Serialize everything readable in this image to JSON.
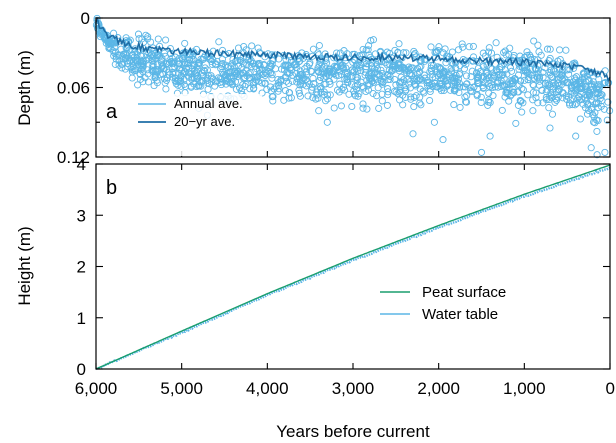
{
  "colors": {
    "annual": "#5bb6e6",
    "twenty_year": "#1f6ea6",
    "peat_surface": "#1a9e6e",
    "water_table": "#5bb6e6"
  },
  "xlabel": "Years before current",
  "chart_data": [
    {
      "type": "scatter",
      "panel": "a",
      "title": "",
      "xlabel": "",
      "ylabel": "Depth (m)",
      "xlim": [
        6000,
        0
      ],
      "ylim": [
        0.12,
        0
      ],
      "y_inverted": true,
      "xticks": [
        6000,
        5000,
        4000,
        3000,
        2000,
        1000,
        0
      ],
      "yticks": [
        {
          "value": 0,
          "label": "0"
        },
        {
          "value": 0.06,
          "label": "0.06"
        },
        {
          "value": 0.12,
          "label": "0.12"
        }
      ],
      "legend_position": "bottom-left",
      "series": [
        {
          "name": "Annual ave.",
          "kind": "scatter",
          "color": "#5bb6e6",
          "trend": [
            [
              6000,
              0.002
            ],
            [
              5950,
              0.012
            ],
            [
              5850,
              0.022
            ],
            [
              5700,
              0.03
            ],
            [
              5500,
              0.036
            ],
            [
              5000,
              0.044
            ],
            [
              4500,
              0.046
            ],
            [
              4000,
              0.047
            ],
            [
              3500,
              0.048
            ],
            [
              3000,
              0.049
            ],
            [
              2500,
              0.048
            ],
            [
              2000,
              0.049
            ],
            [
              1500,
              0.051
            ],
            [
              1000,
              0.052
            ],
            [
              600,
              0.055
            ],
            [
              300,
              0.062
            ],
            [
              0,
              0.07
            ]
          ],
          "outliers": [
            [
              4800,
              0.078
            ],
            [
              4700,
              0.084
            ],
            [
              4650,
              0.074
            ],
            [
              3400,
              0.08
            ],
            [
              3300,
              0.09
            ],
            [
              2700,
              0.078
            ],
            [
              2300,
              0.1
            ],
            [
              2050,
              0.09
            ],
            [
              1950,
              0.105
            ],
            [
              1500,
              0.116
            ],
            [
              1400,
              0.102
            ],
            [
              1100,
              0.091
            ],
            [
              900,
              0.08
            ],
            [
              700,
              0.095
            ],
            [
              400,
              0.102
            ],
            [
              220,
              0.112
            ],
            [
              150,
              0.118
            ],
            [
              60,
              0.116
            ]
          ]
        },
        {
          "name": "20−yr ave.",
          "kind": "line",
          "color": "#1f6ea6",
          "points": [
            [
              6000,
              0.001
            ],
            [
              5950,
              0.008
            ],
            [
              5900,
              0.013
            ],
            [
              5800,
              0.018
            ],
            [
              5600,
              0.023
            ],
            [
              5400,
              0.026
            ],
            [
              5000,
              0.029
            ],
            [
              4500,
              0.031
            ],
            [
              4000,
              0.032
            ],
            [
              3500,
              0.033
            ],
            [
              3000,
              0.034
            ],
            [
              2500,
              0.034
            ],
            [
              2000,
              0.035
            ],
            [
              1500,
              0.037
            ],
            [
              1000,
              0.038
            ],
            [
              500,
              0.041
            ],
            [
              200,
              0.046
            ],
            [
              0,
              0.052
            ]
          ]
        }
      ]
    },
    {
      "type": "line",
      "panel": "b",
      "title": "",
      "xlabel": "Years before current",
      "ylabel": "Height (m)",
      "xlim": [
        6000,
        0
      ],
      "ylim": [
        0,
        4
      ],
      "xticks": [
        {
          "value": 6000,
          "label": "6,000"
        },
        {
          "value": 5000,
          "label": "5,000"
        },
        {
          "value": 4000,
          "label": "4,000"
        },
        {
          "value": 3000,
          "label": "3,000"
        },
        {
          "value": 2000,
          "label": "2,000"
        },
        {
          "value": 1000,
          "label": "1,000"
        },
        {
          "value": 0,
          "label": "0"
        }
      ],
      "yticks": [
        {
          "value": 0,
          "label": "0"
        },
        {
          "value": 1,
          "label": "1"
        },
        {
          "value": 2,
          "label": "2"
        },
        {
          "value": 3,
          "label": "3"
        },
        {
          "value": 4,
          "label": "4"
        }
      ],
      "legend_position": "center-right",
      "series": [
        {
          "name": "Peat surface",
          "color": "#1a9e6e",
          "x": [
            6000,
            5000,
            4000,
            3000,
            2000,
            1000,
            0
          ],
          "y": [
            0,
            0.74,
            1.47,
            2.16,
            2.8,
            3.41,
            3.98
          ]
        },
        {
          "name": "Water table",
          "color": "#5bb6e6",
          "x": [
            6000,
            5000,
            4000,
            3000,
            2000,
            1000,
            0
          ],
          "y": [
            0,
            0.71,
            1.44,
            2.12,
            2.76,
            3.37,
            3.93
          ]
        }
      ]
    }
  ]
}
